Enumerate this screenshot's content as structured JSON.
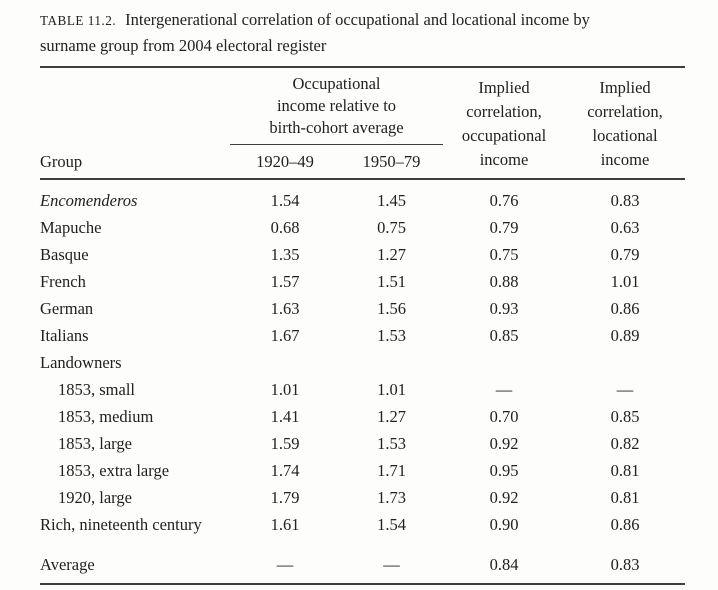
{
  "caption": {
    "label": "TABLE 11.2.",
    "line1": "Intergenerational correlation of occupational and locational income by",
    "line2": "surname group from 2004 electoral register"
  },
  "table": {
    "headers": {
      "group": "Group",
      "spanner_lines": [
        "Occupational",
        "income relative to",
        "birth-cohort average"
      ],
      "sub_columns": [
        "1920–49",
        "1950–79"
      ],
      "implied_occupational_lines": [
        "Implied",
        "correlation,",
        "occupational",
        "income"
      ],
      "implied_locational_lines": [
        "Implied",
        "correlation,",
        "locational",
        "income"
      ]
    },
    "rows": [
      {
        "group": "Encomenderos",
        "c1": "1.54",
        "c2": "1.45",
        "c3": "0.76",
        "c4": "0.83"
      },
      {
        "group": "Mapuche",
        "c1": "0.68",
        "c2": "0.75",
        "c3": "0.79",
        "c4": "0.63"
      },
      {
        "group": "Basque",
        "c1": "1.35",
        "c2": "1.27",
        "c3": "0.75",
        "c4": "0.79"
      },
      {
        "group": "French",
        "c1": "1.57",
        "c2": "1.51",
        "c3": "0.88",
        "c4": "1.01"
      },
      {
        "group": "German",
        "c1": "1.63",
        "c2": "1.56",
        "c3": "0.93",
        "c4": "0.86"
      },
      {
        "group": "Italians",
        "c1": "1.67",
        "c2": "1.53",
        "c3": "0.85",
        "c4": "0.89"
      },
      {
        "group": "Landowners",
        "c1": "",
        "c2": "",
        "c3": "",
        "c4": ""
      },
      {
        "group": "1853, small",
        "c1": "1.01",
        "c2": "1.01",
        "c3": "—",
        "c4": "—"
      },
      {
        "group": "1853, medium",
        "c1": "1.41",
        "c2": "1.27",
        "c3": "0.70",
        "c4": "0.85"
      },
      {
        "group": "1853, large",
        "c1": "1.59",
        "c2": "1.53",
        "c3": "0.92",
        "c4": "0.82"
      },
      {
        "group": "1853, extra large",
        "c1": "1.74",
        "c2": "1.71",
        "c3": "0.95",
        "c4": "0.81"
      },
      {
        "group": "1920, large",
        "c1": "1.79",
        "c2": "1.73",
        "c3": "0.92",
        "c4": "0.81"
      },
      {
        "group": "Rich, nineteenth century",
        "c1": "1.61",
        "c2": "1.54",
        "c3": "0.90",
        "c4": "0.86"
      },
      {
        "group": "Average",
        "c1": "—",
        "c2": "—",
        "c3": "0.84",
        "c4": "0.83"
      }
    ]
  },
  "colors": {
    "text": "#212121",
    "rule": "#3f3f3f",
    "background": "#fdfdfc"
  }
}
